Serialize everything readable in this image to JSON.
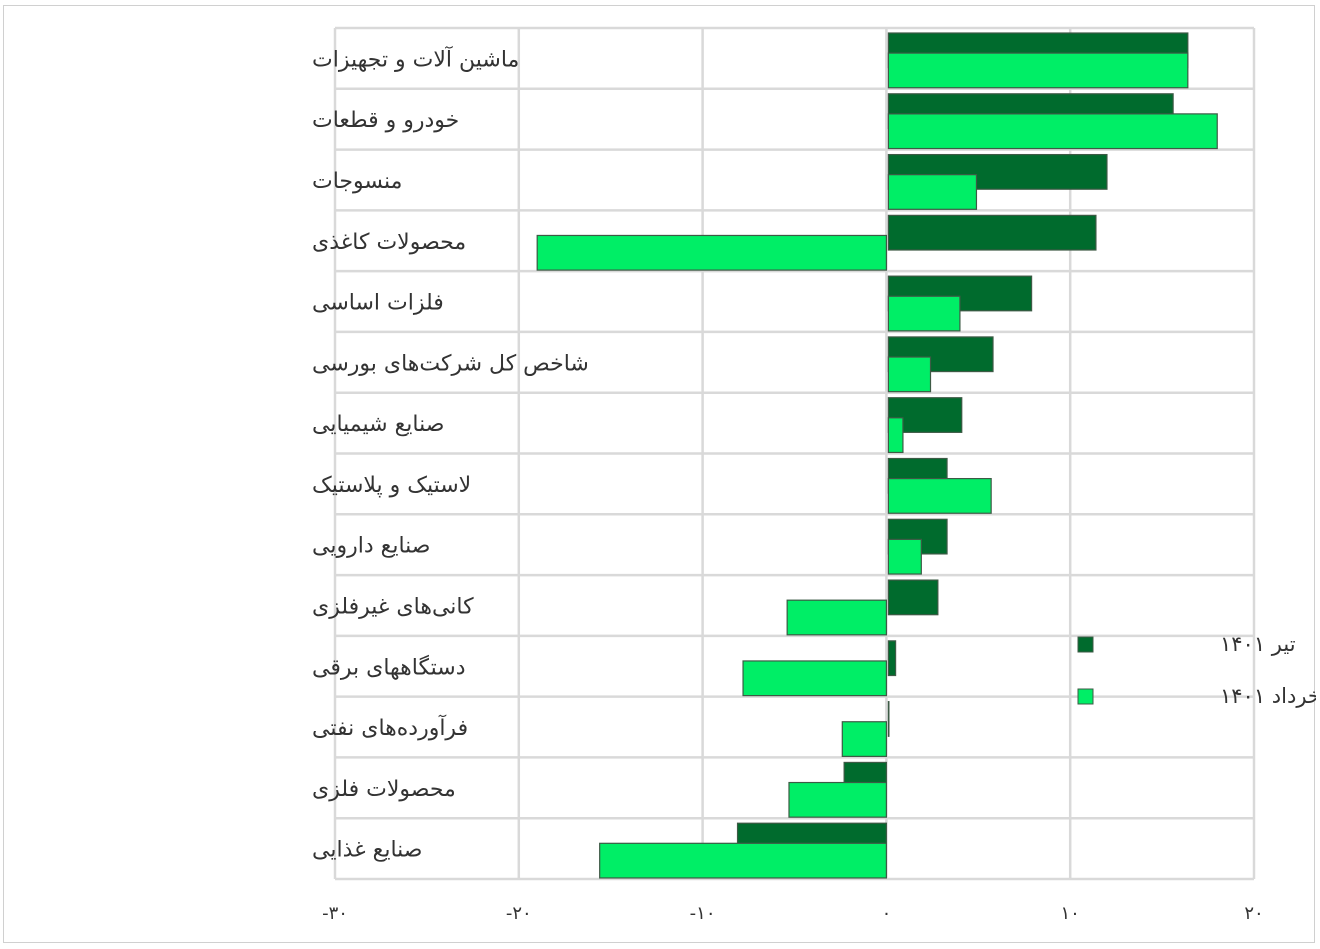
{
  "chart_data": {
    "type": "bar",
    "orientation": "horizontal",
    "categories": [
      "ماشین آلات و تجهیزات",
      "خودرو و قطعات",
      "منسوجات",
      "محصولات کاغذی",
      "فلزات اساسی",
      "شاخص کل شرکت‌های بورسی",
      "صنایع شیمیایی",
      "لاستیک و پلاستیک",
      "صنایع دارویی",
      "کانی‌های غیرفلزی",
      "دستگاههای برقی",
      "فرآورده‌های نفتی",
      "محصولات فلزی",
      "صنایع غذایی"
    ],
    "series": [
      {
        "name": "تیر ۱۴۰۱",
        "color": "#006b2d",
        "values": [
          16.4,
          15.6,
          12.0,
          11.4,
          7.9,
          5.8,
          4.1,
          3.3,
          3.3,
          2.8,
          0.5,
          0.05,
          -2.3,
          -8.1
        ]
      },
      {
        "name": "خرداد ۱۴۰۱",
        "color": "#00ee66",
        "values": [
          16.4,
          18.0,
          4.9,
          -19.0,
          4.0,
          2.4,
          0.9,
          5.7,
          1.9,
          -5.4,
          -7.8,
          -2.4,
          -5.3,
          -15.6
        ]
      }
    ],
    "xlim": [
      -30,
      20
    ],
    "xticks": [
      -30,
      -20,
      -10,
      0,
      10,
      20
    ],
    "xtick_labels": [
      "-۳۰",
      "-۲۰",
      "-۱۰",
      "۰",
      "۱۰",
      "۲۰"
    ],
    "grid": true,
    "legend_position": "right",
    "title": "",
    "xlabel": "",
    "ylabel": ""
  }
}
